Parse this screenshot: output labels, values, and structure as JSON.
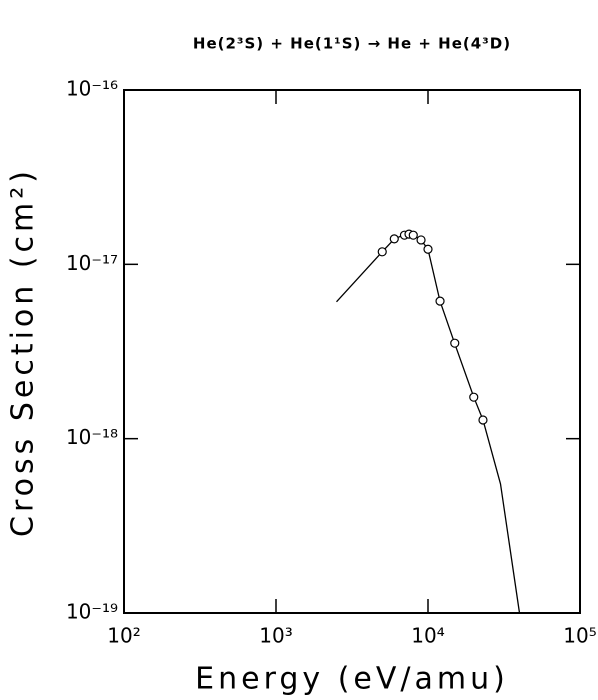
{
  "chart_data": {
    "type": "line",
    "title": "He(2³S) + He(1¹S) → He + He(4³D)",
    "xlabel": "Energy (eV/amu)",
    "ylabel": "Cross Section (cm²)",
    "xscale": "log",
    "yscale": "log",
    "xlim": [
      100,
      100000
    ],
    "ylim": [
      1e-19,
      1e-16
    ],
    "xticks": [
      {
        "value": 100,
        "label": "10²"
      },
      {
        "value": 1000,
        "label": "10³"
      },
      {
        "value": 10000,
        "label": "10⁴"
      },
      {
        "value": 100000,
        "label": "10⁵"
      }
    ],
    "yticks": [
      {
        "value": 1e-19,
        "label": "10⁻¹⁹"
      },
      {
        "value": 1e-18,
        "label": "10⁻¹⁸"
      },
      {
        "value": 1e-17,
        "label": "10⁻¹⁷"
      },
      {
        "value": 1e-16,
        "label": "10⁻¹⁶"
      }
    ],
    "color": "#000000",
    "curve": {
      "x": [
        2500,
        5000,
        6000,
        7000,
        8000,
        9000,
        10000,
        12000,
        15000,
        20000,
        23000,
        30000,
        40000
      ],
      "values": [
        6.1e-18,
        1.18e-17,
        1.4e-17,
        1.48e-17,
        1.47e-17,
        1.38e-17,
        1.22e-17,
        6.15e-18,
        3.5e-18,
        1.73e-18,
        1.28e-18,
        5.5e-19,
        1e-19
      ]
    },
    "points": {
      "x": [
        5000,
        6000,
        7000,
        7500,
        8000,
        9000,
        10000,
        12000,
        15000,
        20000,
        23000
      ],
      "values": [
        1.18e-17,
        1.4e-17,
        1.47e-17,
        1.49e-17,
        1.47e-17,
        1.38e-17,
        1.22e-17,
        6.15e-18,
        3.53e-18,
        1.73e-18,
        1.28e-18
      ]
    }
  }
}
